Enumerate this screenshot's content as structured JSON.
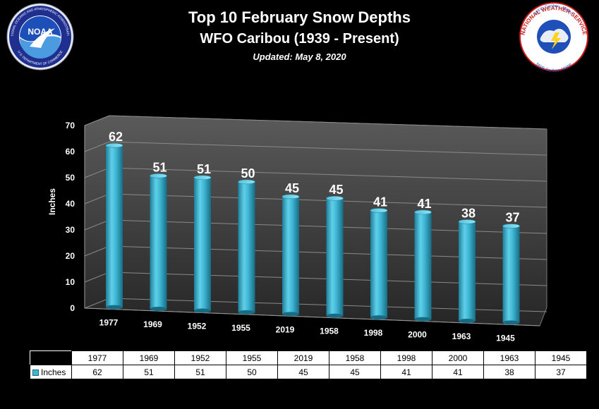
{
  "header": {
    "title": "Top 10 February Snow Depths",
    "subtitle": "WFO Caribou (1939 - Present)",
    "updated": "Updated:  May 8, 2020"
  },
  "logos": {
    "noaa": {
      "center": "NOAA",
      "ring_top": "NATIONAL OCEANIC AND ATMOSPHERIC ADMINISTRATION",
      "ring_bottom": "U.S. DEPARTMENT OF COMMERCE"
    },
    "nws": {
      "ring_top": "WFO Caribou, Maine",
      "ring_middle": "NATIONAL WEATHER SERVICE",
      "ring_bottom": "NWS Caribou, Maine"
    }
  },
  "chart_data": {
    "type": "bar",
    "ylabel": "Inches",
    "ylim": [
      0,
      70
    ],
    "yticks": [
      0,
      10,
      20,
      30,
      40,
      50,
      60,
      70
    ],
    "categories": [
      "1977",
      "1969",
      "1952",
      "1955",
      "2019",
      "1958",
      "1998",
      "2000",
      "1963",
      "1945"
    ],
    "series": [
      {
        "name": "Inches",
        "values": [
          62,
          51,
          51,
          50,
          45,
          45,
          41,
          41,
          38,
          37
        ]
      }
    ],
    "bar_color": "#3fb6d3",
    "data_labels": true,
    "data_table": true
  }
}
